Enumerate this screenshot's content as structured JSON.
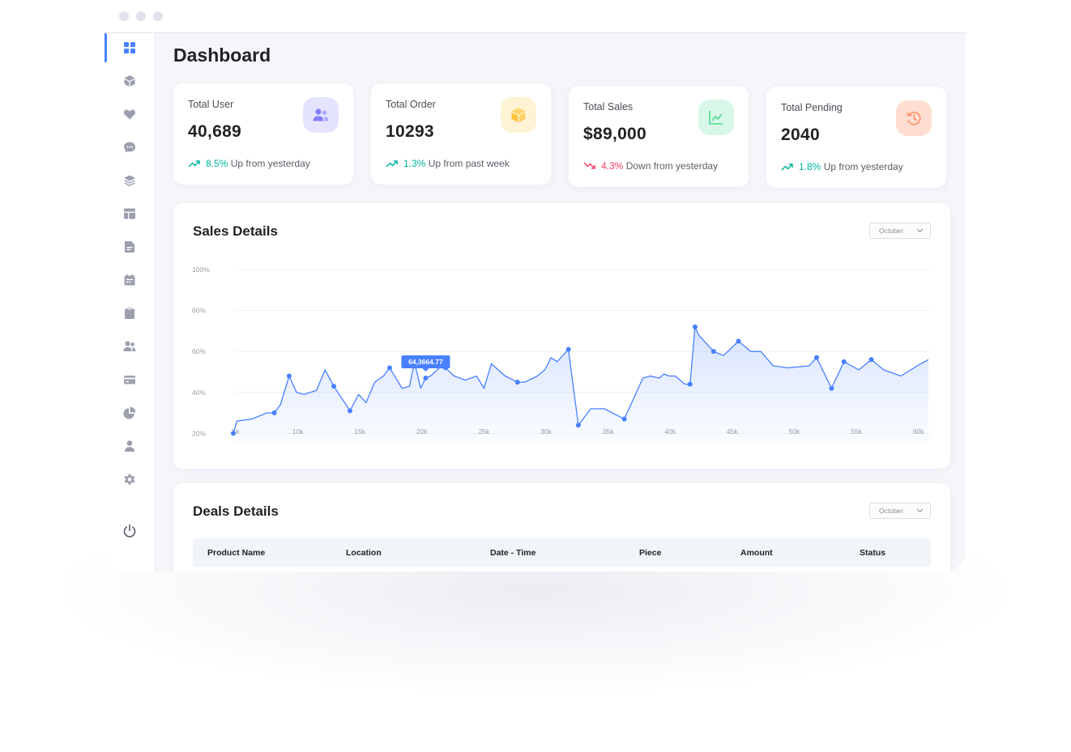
{
  "window": {
    "controls": [
      "close",
      "minimize",
      "maximize"
    ]
  },
  "sidebar": {
    "items": [
      {
        "icon": "dashboard-icon",
        "active": true
      },
      {
        "icon": "box-icon"
      },
      {
        "icon": "heart-icon"
      },
      {
        "icon": "chat-bubble-icon"
      },
      {
        "icon": "layers-icon"
      },
      {
        "icon": "table-layout-icon"
      },
      {
        "icon": "document-icon"
      },
      {
        "icon": "calendar-icon"
      },
      {
        "icon": "clipboard-icon"
      },
      {
        "icon": "users-icon"
      },
      {
        "icon": "credit-card-icon"
      },
      {
        "icon": "pie-chart-icon"
      },
      {
        "icon": "user-icon"
      },
      {
        "icon": "settings-gear-icon"
      }
    ],
    "bottom_icon": "power-icon"
  },
  "page": {
    "title": "Dashboard"
  },
  "cards": [
    {
      "label": "Total User",
      "value": "40,689",
      "pct": "8.5%",
      "trend_text": "Up from yesterday",
      "direction": "up",
      "icon": "users-icon",
      "icon_bg": "#e5e4ff",
      "icon_color": "#8280ff"
    },
    {
      "label": "Total Order",
      "value": "10293",
      "pct": "1.3%",
      "trend_text": "Up from past week",
      "direction": "up",
      "icon": "box-icon",
      "icon_bg": "#fff3d6",
      "icon_color": "#fec53d"
    },
    {
      "label": "Total Sales",
      "value": "$89,000",
      "pct": "4.3%",
      "trend_text": "Down from yesterday",
      "direction": "down",
      "icon": "line-chart-icon",
      "icon_bg": "#d9f7e8",
      "icon_color": "#4ad991"
    },
    {
      "label": "Total Pending",
      "value": "2040",
      "pct": "1.8%",
      "trend_text": "Up from yesterday",
      "direction": "up",
      "icon": "history-clock-icon",
      "icon_bg": "#ffded1",
      "icon_color": "#ff9066"
    }
  ],
  "sales_details": {
    "title": "Sales Details",
    "month_select": "October",
    "tooltip": "64,3664.77"
  },
  "chart_data": {
    "type": "area",
    "title": "Sales Details",
    "xlabel": "",
    "ylabel": "",
    "xlim": [
      5000,
      61000
    ],
    "ylim": [
      15,
      100
    ],
    "x_ticks": [
      "5k",
      "10k",
      "15k",
      "20k",
      "25k",
      "30k",
      "35k",
      "40k",
      "45k",
      "50k",
      "55k",
      "60k"
    ],
    "x_tick_values": [
      5000,
      10000,
      15000,
      20000,
      25000,
      30000,
      35000,
      40000,
      45000,
      50000,
      55000,
      60000
    ],
    "y_ticks": [
      "100%",
      "80%",
      "60%",
      "40%",
      "20%"
    ],
    "y_tick_values": [
      100,
      80,
      60,
      40,
      20
    ],
    "grid": true,
    "color": "#4880ff",
    "x": [
      4800,
      5100,
      6300,
      7500,
      8100,
      8600,
      9300,
      9900,
      10500,
      11500,
      12200,
      12900,
      14200,
      14900,
      15500,
      16200,
      16900,
      17400,
      18400,
      19000,
      19300,
      19500,
      19900,
      20300,
      20700,
      21400,
      21900,
      22600,
      23500,
      24400,
      25000,
      25600,
      26700,
      27700,
      28300,
      29300,
      29900,
      30400,
      30900,
      31800,
      32600,
      33600,
      34700,
      36300,
      37800,
      38400,
      39100,
      39500,
      39900,
      40400,
      40800,
      41200,
      41600,
      42000,
      42300,
      43500,
      44300,
      45500,
      46500,
      47300,
      48300,
      49500,
      51200,
      51800,
      53000,
      54000,
      55200,
      56200,
      57200,
      58600,
      59900,
      60800
    ],
    "y": [
      20,
      26,
      27,
      30,
      30,
      34,
      48,
      40,
      39,
      41,
      51,
      43,
      31,
      39,
      35,
      45,
      48,
      52,
      42,
      43,
      52,
      52,
      42,
      47,
      48,
      52,
      52,
      48,
      46,
      48,
      42,
      54,
      48,
      45,
      45,
      48,
      51,
      57,
      55,
      61,
      24,
      32,
      32,
      27,
      47,
      48,
      47,
      49,
      48,
      48,
      46,
      44,
      44,
      72,
      68,
      60,
      58,
      65,
      60,
      60,
      53,
      52,
      53,
      57,
      42,
      55,
      51,
      56,
      51,
      48,
      53,
      56
    ],
    "marker_indices": [
      0,
      4,
      6,
      11,
      12,
      17,
      23,
      26,
      33,
      39,
      40,
      43,
      52,
      53,
      55,
      57,
      63,
      64,
      65,
      67
    ],
    "tooltip_index": 23
  },
  "deals_details": {
    "title": "Deals Details",
    "month_select": "October",
    "columns": [
      "Product Name",
      "Location",
      "Date - Time",
      "Piece",
      "Amount",
      "Status"
    ]
  }
}
